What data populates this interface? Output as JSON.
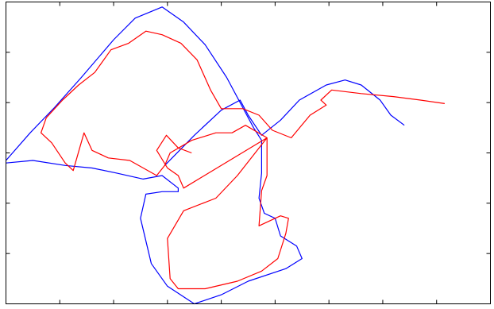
{
  "chart_data": {
    "type": "line",
    "title": "",
    "xlabel": "",
    "ylabel": "",
    "grid": false,
    "legend": "none",
    "xlim": [
      0,
      9
    ],
    "ylim": [
      0,
      6
    ],
    "x_ticks": [
      1,
      2,
      3,
      4,
      5,
      6,
      7,
      8
    ],
    "y_ticks": [
      1,
      2,
      3,
      4,
      5
    ],
    "series": [
      {
        "color": "#0000ff",
        "points": [
          [
            0.0,
            2.8
          ],
          [
            0.5,
            2.85
          ],
          [
            1.1,
            2.75
          ],
          [
            1.6,
            2.7
          ],
          [
            2.05,
            2.6
          ],
          [
            2.55,
            2.48
          ],
          [
            2.9,
            2.55
          ],
          [
            3.2,
            2.3
          ],
          [
            3.2,
            2.23
          ],
          [
            2.9,
            2.23
          ],
          [
            2.6,
            2.18
          ],
          [
            2.5,
            1.7
          ],
          [
            2.7,
            0.8
          ],
          [
            3.0,
            0.35
          ],
          [
            3.5,
            0.0
          ],
          [
            4.0,
            0.18
          ],
          [
            4.5,
            0.45
          ],
          [
            5.2,
            0.7
          ],
          [
            5.5,
            0.9
          ],
          [
            5.4,
            1.15
          ],
          [
            5.1,
            1.35
          ],
          [
            5.0,
            1.7
          ],
          [
            4.8,
            1.8
          ],
          [
            4.7,
            2.1
          ],
          [
            4.75,
            2.6
          ],
          [
            4.75,
            3.25
          ],
          [
            4.6,
            3.5
          ],
          [
            4.4,
            3.9
          ],
          [
            4.1,
            4.5
          ],
          [
            3.7,
            5.15
          ],
          [
            3.3,
            5.6
          ],
          [
            2.9,
            5.9
          ],
          [
            2.4,
            5.68
          ],
          [
            2.0,
            5.25
          ],
          [
            1.4,
            4.5
          ],
          [
            0.9,
            3.9
          ],
          [
            0.45,
            3.4
          ],
          [
            0.0,
            2.85
          ]
        ]
      },
      {
        "color": "#0000ff",
        "points": [
          [
            2.95,
            2.75
          ],
          [
            3.5,
            3.35
          ],
          [
            4.0,
            3.85
          ],
          [
            4.35,
            4.05
          ],
          [
            4.5,
            3.75
          ],
          [
            4.75,
            3.35
          ],
          [
            5.1,
            3.65
          ],
          [
            5.45,
            4.05
          ],
          [
            5.95,
            4.35
          ],
          [
            6.3,
            4.45
          ],
          [
            6.6,
            4.35
          ],
          [
            6.95,
            4.05
          ],
          [
            7.15,
            3.75
          ],
          [
            7.4,
            3.55
          ]
        ]
      },
      {
        "color": "#ff0000",
        "points": [
          [
            8.15,
            3.98
          ],
          [
            7.7,
            4.05
          ],
          [
            7.2,
            4.12
          ],
          [
            6.6,
            4.18
          ],
          [
            6.05,
            4.25
          ],
          [
            5.85,
            4.05
          ],
          [
            5.95,
            3.95
          ],
          [
            5.65,
            3.75
          ],
          [
            5.3,
            3.3
          ],
          [
            4.95,
            3.45
          ],
          [
            4.7,
            3.75
          ],
          [
            4.4,
            3.88
          ],
          [
            4.0,
            3.88
          ],
          [
            3.8,
            4.25
          ],
          [
            3.55,
            4.85
          ],
          [
            3.25,
            5.18
          ],
          [
            2.9,
            5.35
          ],
          [
            2.6,
            5.42
          ],
          [
            2.28,
            5.18
          ],
          [
            1.95,
            5.05
          ],
          [
            1.65,
            4.6
          ],
          [
            1.35,
            4.35
          ],
          [
            1.05,
            4.05
          ],
          [
            0.75,
            3.7
          ],
          [
            0.65,
            3.4
          ],
          [
            0.85,
            3.2
          ],
          [
            1.1,
            2.8
          ],
          [
            1.25,
            2.65
          ],
          [
            1.45,
            3.4
          ],
          [
            1.6,
            3.05
          ],
          [
            1.9,
            2.9
          ],
          [
            2.3,
            2.85
          ],
          [
            2.8,
            2.55
          ],
          [
            2.95,
            2.75
          ],
          [
            3.05,
            3.0
          ],
          [
            3.45,
            3.25
          ],
          [
            3.9,
            3.4
          ],
          [
            4.2,
            3.4
          ],
          [
            4.45,
            3.55
          ],
          [
            4.85,
            3.3
          ],
          [
            4.85,
            2.55
          ],
          [
            4.75,
            2.25
          ],
          [
            4.7,
            1.55
          ],
          [
            5.1,
            1.75
          ],
          [
            5.25,
            1.7
          ],
          [
            5.2,
            1.4
          ],
          [
            5.05,
            0.9
          ],
          [
            4.75,
            0.65
          ],
          [
            4.3,
            0.45
          ],
          [
            3.7,
            0.3
          ],
          [
            3.2,
            0.3
          ],
          [
            3.05,
            0.5
          ],
          [
            3.0,
            1.3
          ],
          [
            3.3,
            1.85
          ],
          [
            3.9,
            2.1
          ],
          [
            4.3,
            2.55
          ],
          [
            4.85,
            3.3
          ],
          [
            3.3,
            2.3
          ],
          [
            3.2,
            2.55
          ],
          [
            3.0,
            2.7
          ],
          [
            2.8,
            3.05
          ],
          [
            2.98,
            3.35
          ],
          [
            3.2,
            3.1
          ],
          [
            3.45,
            3.0
          ]
        ]
      }
    ]
  }
}
